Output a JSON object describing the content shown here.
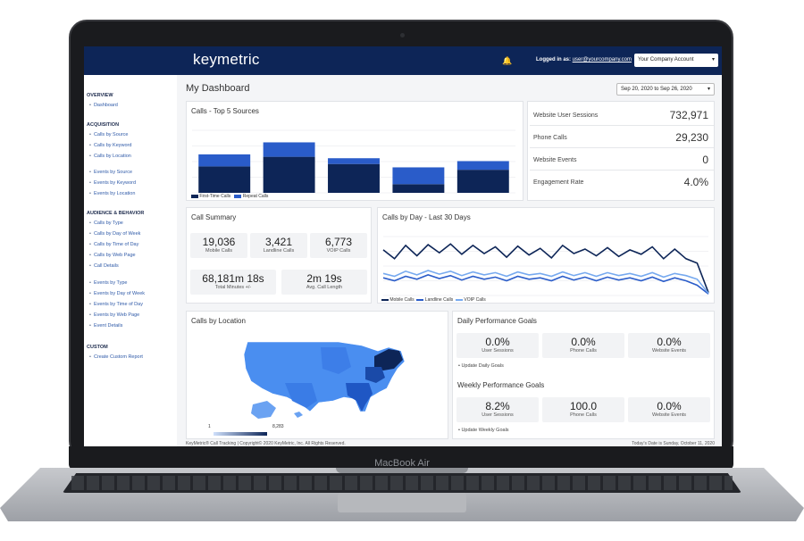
{
  "device": {
    "label": "MacBook Air"
  },
  "header": {
    "logo": "keymetric",
    "logged_prefix": "Logged in as:",
    "user": "user@yourcompany.com",
    "account": "Your Company Account"
  },
  "sidebar": {
    "sections": [
      {
        "title": "OVERVIEW",
        "items": [
          "Dashboard"
        ]
      },
      {
        "title": "ACQUISITION",
        "items": [
          "Calls by Source",
          "Calls by Keyword",
          "Calls by Location",
          "Events by Source",
          "Events by Keyword",
          "Events by Location"
        ]
      },
      {
        "title": "AUDIENCE & BEHAVIOR",
        "items": [
          "Calls by Type",
          "Calls by Day of Week",
          "Calls by Time of Day",
          "Calls by Web Page",
          "Call Details",
          "Events by Type",
          "Events by Day of Week",
          "Events by Time of Day",
          "Events by Web Page",
          "Event Details"
        ]
      },
      {
        "title": "CUSTOM",
        "items": [
          "Create Custom Report"
        ]
      }
    ]
  },
  "main": {
    "title": "My Dashboard",
    "date_range": "Sep 20, 2020 to Sep 26, 2020"
  },
  "top5": {
    "title": "Calls - Top 5 Sources",
    "legend": [
      "First-Time Calls",
      "Repeat Calls"
    ]
  },
  "chart_data": [
    {
      "type": "bar",
      "title": "Calls - Top 5 Sources",
      "stacked": true,
      "categories": [
        "",
        "",
        "",
        "",
        ""
      ],
      "series": [
        {
          "name": "First-Time Calls",
          "values": [
            55,
            75,
            60,
            18,
            48
          ],
          "color": "#0d2557"
        },
        {
          "name": "Repeat Calls",
          "values": [
            25,
            30,
            12,
            35,
            18
          ],
          "color": "#2a5cc9"
        }
      ],
      "ylim": [
        0,
        130
      ],
      "grid": true,
      "legend": "bottom-left"
    },
    {
      "type": "line",
      "title": "Calls by Day - Last 30 Days",
      "x": [
        1,
        2,
        3,
        4,
        5,
        6,
        7,
        8,
        9,
        10,
        11,
        12,
        13,
        14,
        15,
        16,
        17,
        18,
        19,
        20,
        21,
        22,
        23,
        24,
        25,
        26,
        27,
        28,
        29,
        30
      ],
      "series": [
        {
          "name": "Mobile Calls",
          "values": [
            62,
            50,
            68,
            54,
            69,
            58,
            70,
            56,
            68,
            57,
            66,
            52,
            67,
            55,
            64,
            51,
            68,
            57,
            63,
            54,
            65,
            53,
            62,
            56,
            66,
            50,
            63,
            50,
            44,
            4
          ],
          "color": "#0d2557"
        },
        {
          "name": "Landline Calls",
          "values": [
            24,
            20,
            26,
            22,
            28,
            23,
            27,
            21,
            26,
            22,
            25,
            20,
            26,
            22,
            24,
            20,
            26,
            21,
            25,
            20,
            25,
            21,
            24,
            20,
            25,
            19,
            24,
            20,
            14,
            2
          ],
          "color": "#2a5cc9"
        },
        {
          "name": "VOIP Calls",
          "values": [
            30,
            26,
            33,
            28,
            34,
            29,
            33,
            27,
            32,
            28,
            31,
            26,
            32,
            28,
            30,
            26,
            32,
            27,
            31,
            26,
            31,
            27,
            30,
            26,
            31,
            25,
            30,
            27,
            22,
            3
          ],
          "color": "#76a9ef"
        }
      ],
      "ylim": [
        0,
        80
      ],
      "grid": true,
      "legend": "bottom-left"
    },
    {
      "type": "heatmap",
      "title": "Calls by Location",
      "scale_min": "1",
      "scale_max": "8,283"
    }
  ],
  "stats": [
    {
      "label": "Website User Sessions",
      "value": "732,971"
    },
    {
      "label": "Phone Calls",
      "value": "29,230"
    },
    {
      "label": "Website Events",
      "value": "0"
    },
    {
      "label": "Engagement Rate",
      "value": "4.0%"
    }
  ],
  "summary": {
    "title": "Call Summary",
    "mobile": {
      "value": "19,036",
      "label": "Mobile Calls"
    },
    "landline": {
      "value": "3,421",
      "label": "Landline Calls"
    },
    "voip": {
      "value": "6,773",
      "label": "VOIP Calls"
    },
    "minutes": {
      "value": "68,181m 18s",
      "label": "Total Minutes +/-"
    },
    "avg": {
      "value": "2m 19s",
      "label": "Avg. Call Length"
    }
  },
  "byday": {
    "title": "Calls by Day - Last 30 Days",
    "legend": [
      "Mobile Calls",
      "Landline Calls",
      "VOIP Calls"
    ]
  },
  "location": {
    "title": "Calls by Location",
    "scale_min": "1",
    "scale_max": "8,283"
  },
  "goals": {
    "daily_title": "Daily Performance Goals",
    "daily": [
      {
        "value": "0.0%",
        "label": "User Sessions"
      },
      {
        "value": "0.0%",
        "label": "Phone Calls"
      },
      {
        "value": "0.0%",
        "label": "Website Events"
      }
    ],
    "daily_update": "• Update Daily Goals",
    "weekly_title": "Weekly Performance Goals",
    "weekly": [
      {
        "value": "8.2%",
        "label": "User Sessions"
      },
      {
        "value": "100.0",
        "label": "Phone Calls"
      },
      {
        "value": "0.0%",
        "label": "Website Events"
      }
    ],
    "weekly_update": "• Update Weekly Goals"
  },
  "footer": {
    "left": "KeyMetric® Call Tracking | Copyright© 2020 KeyMetric, Inc. All Rights Reserved.",
    "right": "Today's Date is Sunday, October 11, 2020"
  }
}
